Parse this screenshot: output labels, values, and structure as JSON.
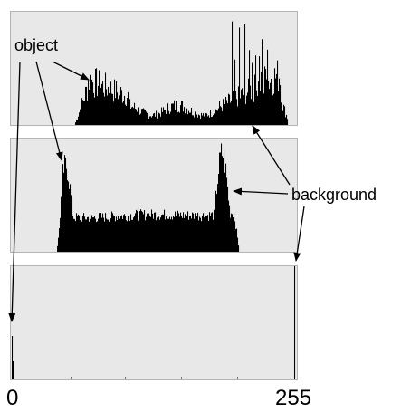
{
  "labels": {
    "object": "object",
    "background": "background",
    "axis_min": "0",
    "axis_max": "255"
  },
  "colors": {
    "panel_fill": "#e8e8e8",
    "panel_border": "#b4b4b4",
    "bars": "#000000"
  }
}
